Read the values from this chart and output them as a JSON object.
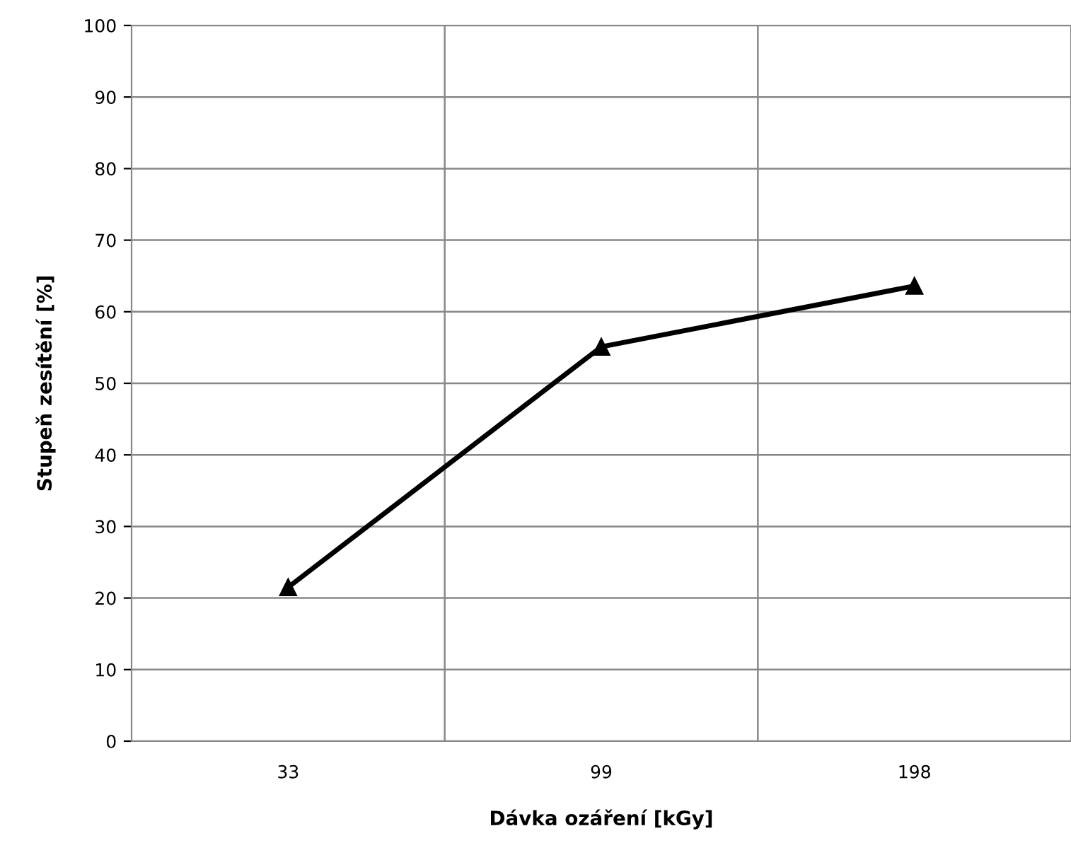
{
  "chart_data": {
    "type": "line",
    "xlabel": "Dávka ozáření [kGy]",
    "ylabel": "Stupeň zesítění [%]",
    "categories": [
      "33",
      "99",
      "198"
    ],
    "series": [
      {
        "color": "#000000",
        "values": [
          21.5,
          55.1,
          63.6
        ]
      }
    ],
    "ylim": [
      0,
      100
    ],
    "yticks": [
      0,
      10,
      20,
      30,
      40,
      50,
      60,
      70,
      80,
      90,
      100
    ],
    "grid": true,
    "marker": "triangle",
    "line_style": "solid",
    "legend": false
  }
}
